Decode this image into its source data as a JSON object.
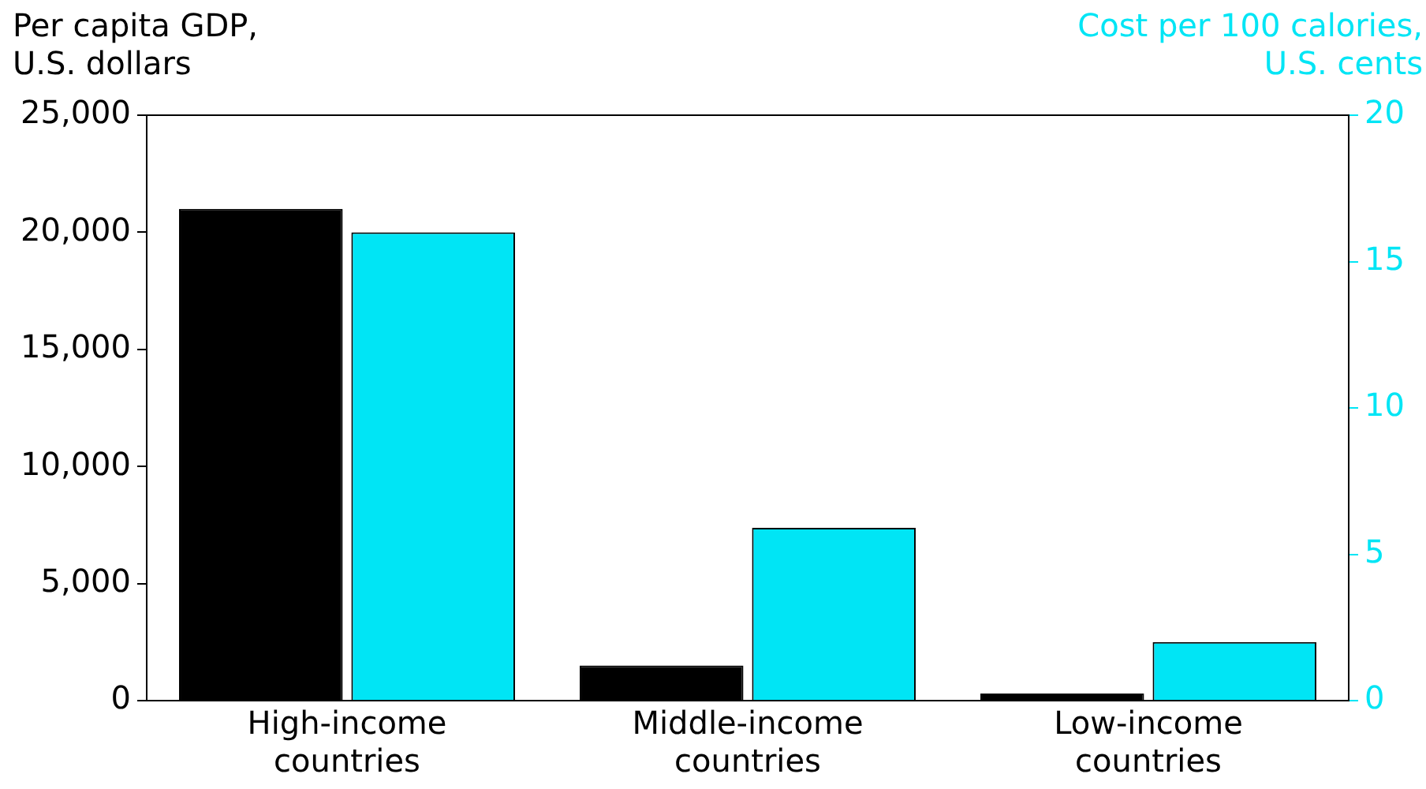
{
  "chart_data": {
    "type": "bar",
    "ylabel": "Per capita GDP, U.S. dollars",
    "y2label": "Cost per 100 calories, U.S. cents",
    "categories": [
      "High-income countries",
      "Middle-income countries",
      "Low-income countries"
    ],
    "series": [
      {
        "color": "#000000",
        "values": [
          21000,
          1500,
          300
        ]
      },
      {
        "color": "#00e5f5",
        "values": [
          16,
          5.9,
          2.0
        ],
        "axis": "y2"
      }
    ],
    "ylim": [
      0,
      25000
    ],
    "yticks": [
      {
        "value": 0,
        "label": "0"
      },
      {
        "value": 5000,
        "label": "5,000"
      },
      {
        "value": 10000,
        "label": "10,000"
      },
      {
        "value": 15000,
        "label": "15,000"
      },
      {
        "value": 20000,
        "label": "20,000"
      },
      {
        "value": 25000,
        "label": "25,000"
      }
    ],
    "y2lim": [
      0,
      20
    ],
    "y2ticks": [
      0,
      5,
      10,
      15,
      20
    ],
    "grid": false,
    "legend": false
  }
}
